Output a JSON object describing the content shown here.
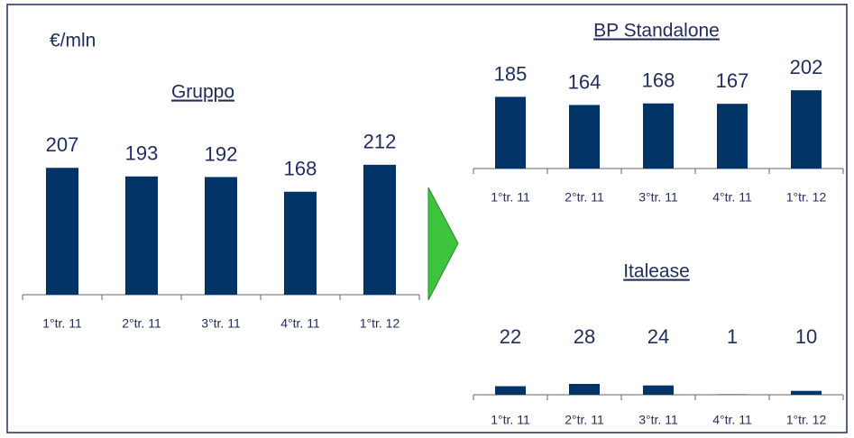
{
  "unit": "€/mln",
  "chart_data": [
    {
      "type": "bar",
      "title": "Gruppo",
      "color": "#003366",
      "categories": [
        "1°tr. 11",
        "2°tr. 11",
        "3°tr. 11",
        "4°tr. 11",
        "1°tr. 12"
      ],
      "values": [
        207,
        193,
        192,
        168,
        212
      ]
    },
    {
      "type": "bar",
      "title": "BP Standalone",
      "color": "#003366",
      "categories": [
        "1°tr. 11",
        "2°tr. 11",
        "3°tr. 11",
        "4°tr. 11",
        "1°tr. 12"
      ],
      "values": [
        185,
        164,
        168,
        167,
        202
      ]
    },
    {
      "type": "bar",
      "title": "Italease",
      "color": "#003366",
      "categories": [
        "1°tr. 11",
        "2°tr. 11",
        "3°tr. 11",
        "4°tr. 11",
        "1°tr. 12"
      ],
      "values": [
        22,
        28,
        24,
        1,
        10
      ]
    }
  ]
}
